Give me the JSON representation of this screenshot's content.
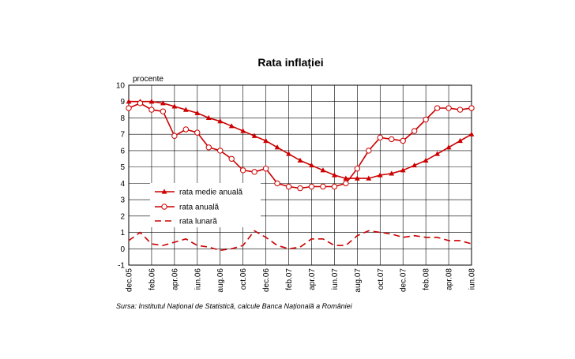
{
  "chart_data": {
    "type": "line",
    "title": "Rata inflației",
    "ylabel": "procente",
    "ylim": [
      -1,
      10
    ],
    "yticks": [
      "-1",
      "0",
      "1",
      "2",
      "3",
      "4",
      "5",
      "6",
      "7",
      "8",
      "9",
      "10"
    ],
    "categories": [
      "dec.05",
      "ian.06",
      "feb.06",
      "mar.06",
      "apr.06",
      "mai.06",
      "iun.06",
      "iul.06",
      "aug.06",
      "sep.06",
      "oct.06",
      "nov.06",
      "dec.06",
      "ian.07",
      "feb.07",
      "mar.07",
      "apr.07",
      "mai.07",
      "iun.07",
      "iul.07",
      "aug.07",
      "sep.07",
      "oct.07",
      "nov.07",
      "dec.07",
      "ian.08",
      "feb.08",
      "mar.08",
      "apr.08",
      "mai.08",
      "iun.08"
    ],
    "xtick_labels": [
      "dec.05",
      "feb.06",
      "apr.06",
      "iun.06",
      "aug.06",
      "oct.06",
      "dec.06",
      "feb.07",
      "apr.07",
      "iun.07",
      "aug.07",
      "oct.07",
      "dec.07",
      "feb.08",
      "apr.08",
      "iun.08"
    ],
    "series": [
      {
        "name": "rata medie anuală",
        "style": "solid-triangle",
        "color": "#cc0000",
        "values": [
          9.0,
          9.0,
          9.0,
          8.9,
          8.7,
          8.5,
          8.3,
          8.0,
          7.8,
          7.5,
          7.2,
          6.9,
          6.6,
          6.2,
          5.8,
          5.4,
          5.1,
          4.8,
          4.5,
          4.3,
          4.3,
          4.3,
          4.5,
          4.6,
          4.8,
          5.1,
          5.4,
          5.8,
          6.2,
          6.6,
          7.0
        ]
      },
      {
        "name": "rata anuală",
        "style": "solid-circle",
        "color": "#cc0000",
        "values": [
          8.6,
          8.9,
          8.5,
          8.4,
          6.9,
          7.3,
          7.1,
          6.2,
          6.0,
          5.5,
          4.8,
          4.7,
          4.9,
          4.0,
          3.8,
          3.7,
          3.8,
          3.8,
          3.8,
          4.0,
          4.9,
          6.0,
          6.8,
          6.7,
          6.6,
          7.2,
          7.9,
          8.6,
          8.6,
          8.5,
          8.6
        ]
      },
      {
        "name": "rata lunară",
        "style": "dashed",
        "color": "#cc0000",
        "values": [
          0.5,
          1.0,
          0.3,
          0.2,
          0.4,
          0.6,
          0.2,
          0.1,
          -0.1,
          0.0,
          0.2,
          1.1,
          0.7,
          0.2,
          0.0,
          0.1,
          0.6,
          0.6,
          0.2,
          0.2,
          0.8,
          1.1,
          1.0,
          0.9,
          0.7,
          0.8,
          0.7,
          0.7,
          0.5,
          0.5,
          0.3
        ]
      }
    ],
    "legend_position": "left-middle",
    "grid": true
  },
  "source_note": "Sursa: Institutul Național de Statistică, calcule Banca Națională a României",
  "colors": {
    "series": "#cc0000",
    "grid": "#000000"
  }
}
